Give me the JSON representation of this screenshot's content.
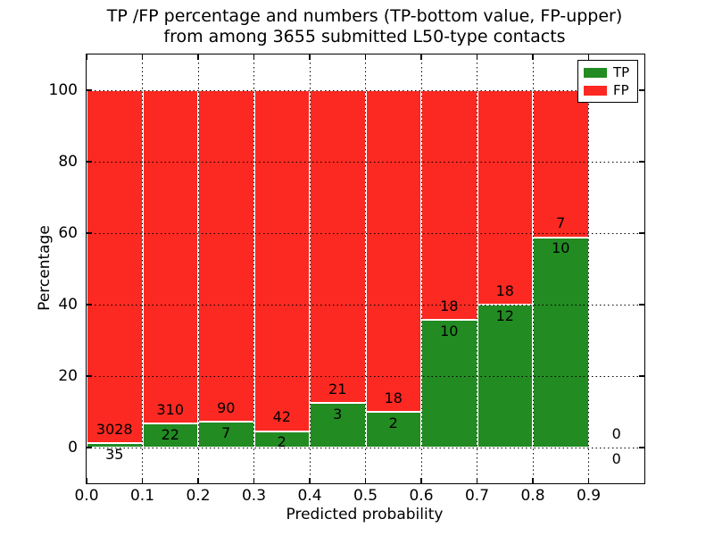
{
  "figure": {
    "title_line1": "TP /FP percentage and numbers (TP-bottom value, FP-upper)",
    "title_line2": "from among 3655 submitted L50-type contacts",
    "xlabel": "Predicted probability",
    "ylabel": "Percentage",
    "legend": {
      "items": [
        {
          "label": "TP",
          "color": "#228b22"
        },
        {
          "label": "FP",
          "color": "#fb2921"
        }
      ]
    }
  },
  "chart_data": {
    "type": "bar",
    "stacked": true,
    "normalized_to_percent": true,
    "title": "TP /FP percentage and numbers (TP-bottom value, FP-upper) from among 3655 submitted L50-type contacts",
    "xlabel": "Predicted probability",
    "ylabel": "Percentage",
    "xlim": [
      0.0,
      1.0
    ],
    "ylim": [
      -10,
      110
    ],
    "grid": true,
    "grid_style": "dotted",
    "legend_position": "upper right",
    "bin_width": 0.1,
    "categories": [
      "0.0-0.1",
      "0.1-0.2",
      "0.2-0.3",
      "0.3-0.4",
      "0.4-0.5",
      "0.5-0.6",
      "0.6-0.7",
      "0.7-0.8",
      "0.8-0.9",
      "0.9-1.0"
    ],
    "series": [
      {
        "name": "TP",
        "color": "#228b22",
        "counts": [
          35,
          22,
          7,
          2,
          3,
          2,
          10,
          12,
          10,
          0
        ]
      },
      {
        "name": "FP",
        "color": "#fb2921",
        "counts": [
          3028,
          310,
          90,
          42,
          21,
          18,
          18,
          18,
          7,
          0
        ]
      }
    ],
    "tp_percent_heights": [
      1.14,
      6.63,
      7.22,
      4.55,
      12.5,
      10.0,
      35.71,
      40.0,
      58.82,
      null
    ],
    "total_contacts": 3655,
    "xticks": [
      "0.0",
      "0.1",
      "0.2",
      "0.3",
      "0.4",
      "0.5",
      "0.6",
      "0.7",
      "0.8",
      "0.9"
    ],
    "yticks": [
      0,
      20,
      40,
      60,
      80,
      100
    ]
  }
}
